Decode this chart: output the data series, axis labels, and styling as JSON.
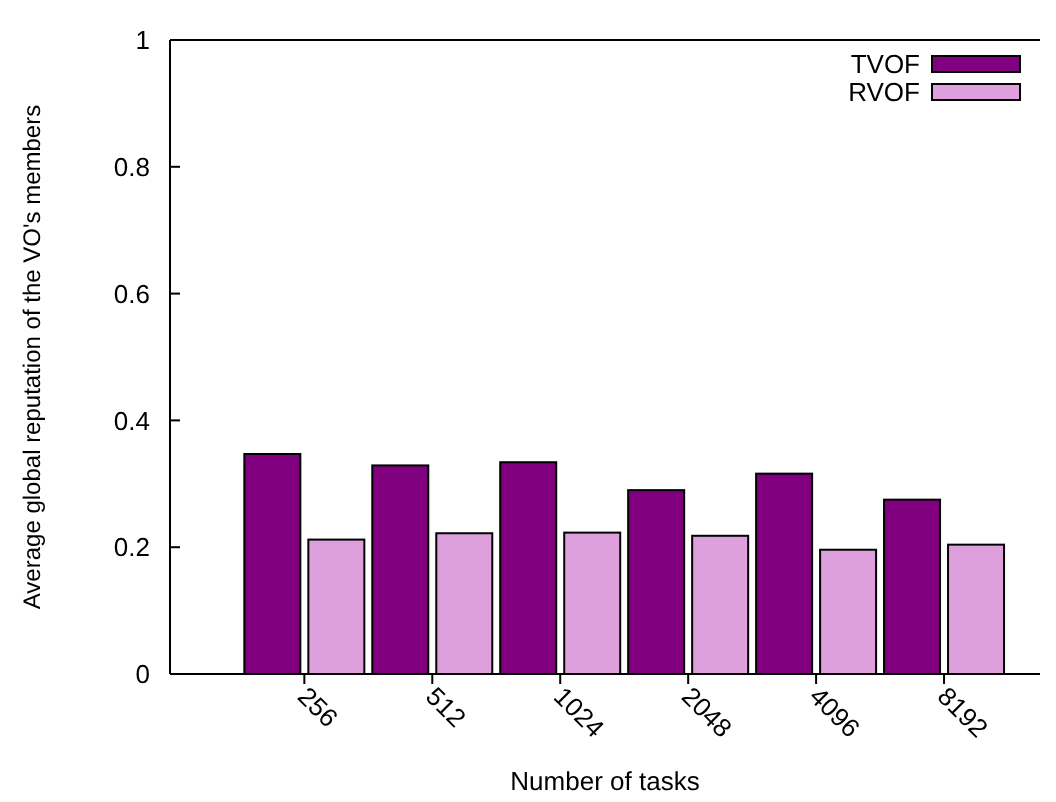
{
  "chart_data": {
    "type": "bar",
    "xlabel": "Number of tasks",
    "ylabel": "Average global reputation of the VO's members",
    "categories": [
      "256",
      "512",
      "1024",
      "2048",
      "4096",
      "8192"
    ],
    "series": [
      {
        "name": "TVOF",
        "color": "#800080",
        "values": [
          0.347,
          0.329,
          0.334,
          0.29,
          0.316,
          0.275
        ]
      },
      {
        "name": "RVOF",
        "color": "#dda0dd",
        "values": [
          0.212,
          0.222,
          0.223,
          0.218,
          0.196,
          0.204
        ]
      }
    ],
    "ylim": [
      0,
      1
    ],
    "yticks": [
      0,
      0.2,
      0.4,
      0.6,
      0.8,
      1
    ],
    "legend": "top right"
  }
}
